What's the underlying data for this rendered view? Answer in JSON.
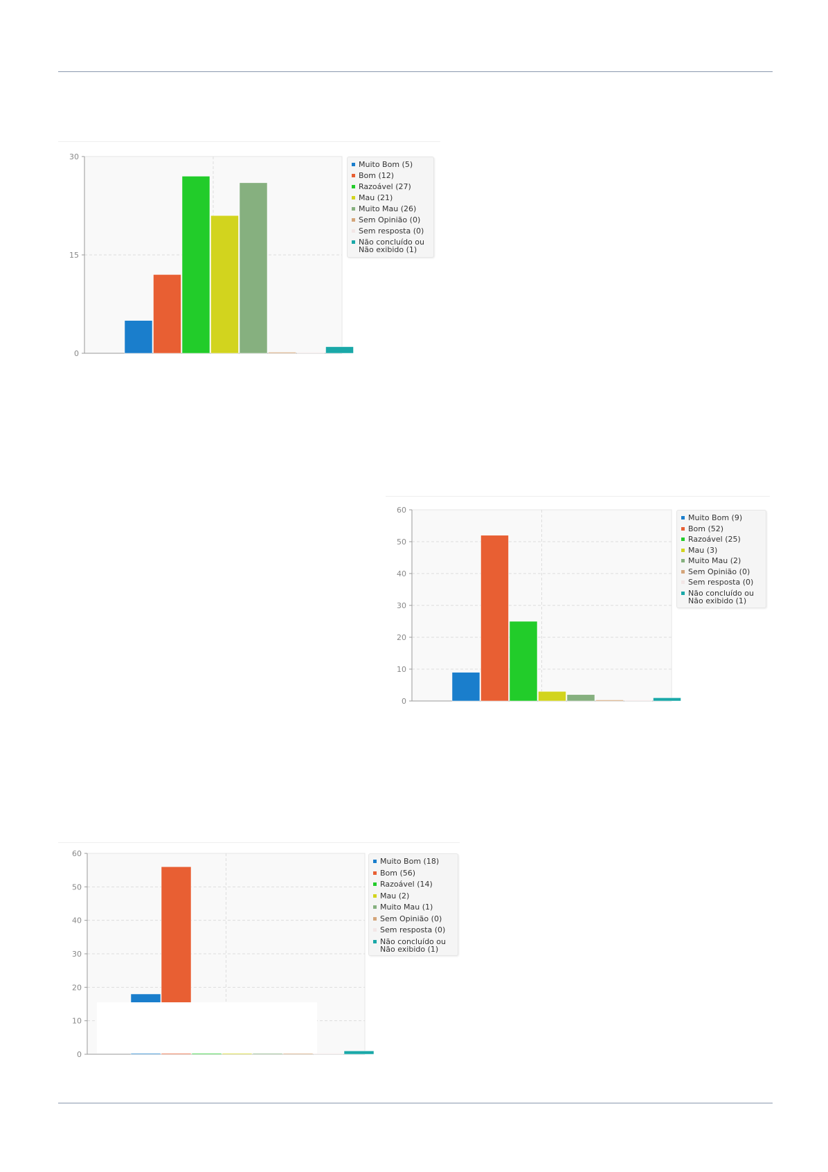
{
  "chart_data": [
    {
      "type": "bar",
      "categories": [
        "Muito Bom",
        "Bom",
        "Razoável",
        "Mau",
        "Muito Mau",
        "Sem Opinião",
        "Sem resposta",
        "Não concluído ou Não exibido"
      ],
      "values": [
        5,
        12,
        27,
        21,
        26,
        0,
        0,
        1
      ],
      "colors": [
        "#1a7ecc",
        "#e85f33",
        "#22cc2a",
        "#d2d41e",
        "#86b07f",
        "#d4a57a",
        "#f2e6e6",
        "#1aa8a8"
      ],
      "legend": [
        "Muito Bom (5)",
        "Bom (12)",
        "Razoável (27)",
        "Mau (21)",
        "Muito Mau (26)",
        "Sem Opinião (0)",
        "Sem resposta (0)",
        "Não concluído ou\nNão exibido (1)"
      ],
      "yticks": [
        "0",
        "15",
        "30"
      ],
      "ylim": [
        0,
        30
      ],
      "legend_position": "right",
      "grid": true
    },
    {
      "type": "bar",
      "categories": [
        "Muito Bom",
        "Bom",
        "Razoável",
        "Mau",
        "Muito Mau",
        "Sem Opinião",
        "Sem resposta",
        "Não concluído ou Não exibido"
      ],
      "values": [
        9,
        52,
        25,
        3,
        2,
        0,
        0,
        1
      ],
      "colors": [
        "#1a7ecc",
        "#e85f33",
        "#22cc2a",
        "#d2d41e",
        "#86b07f",
        "#d4a57a",
        "#f2e6e6",
        "#1aa8a8"
      ],
      "legend": [
        "Muito Bom (9)",
        "Bom (52)",
        "Razoável (25)",
        "Mau (3)",
        "Muito Mau (2)",
        "Sem Opinião (0)",
        "Sem resposta (0)",
        "Não concluído ou\nNão exibido (1)"
      ],
      "yticks": [
        "0",
        "10",
        "20",
        "30",
        "40",
        "50",
        "60"
      ],
      "ylim": [
        0,
        60
      ],
      "legend_position": "right",
      "grid": true
    },
    {
      "type": "bar",
      "categories": [
        "Muito Bom",
        "Bom",
        "Razoável",
        "Mau",
        "Muito Mau",
        "Sem Opinião",
        "Sem resposta",
        "Não concluído ou Não exibido"
      ],
      "values": [
        18,
        56,
        14,
        2,
        1,
        0,
        0,
        1
      ],
      "colors": [
        "#1a7ecc",
        "#e85f33",
        "#22cc2a",
        "#d2d41e",
        "#86b07f",
        "#d4a57a",
        "#f2e6e6",
        "#1aa8a8"
      ],
      "legend": [
        "Muito Bom (18)",
        "Bom (56)",
        "Razoável (14)",
        "Mau (2)",
        "Muito Mau (1)",
        "Sem Opinião (0)",
        "Sem resposta (0)",
        "Não concluído ou\nNão exibido (1)"
      ],
      "yticks": [
        "0",
        "10",
        "20",
        "30",
        "40",
        "50",
        "60"
      ],
      "ylim": [
        0,
        60
      ],
      "legend_position": "right",
      "grid": true
    }
  ]
}
